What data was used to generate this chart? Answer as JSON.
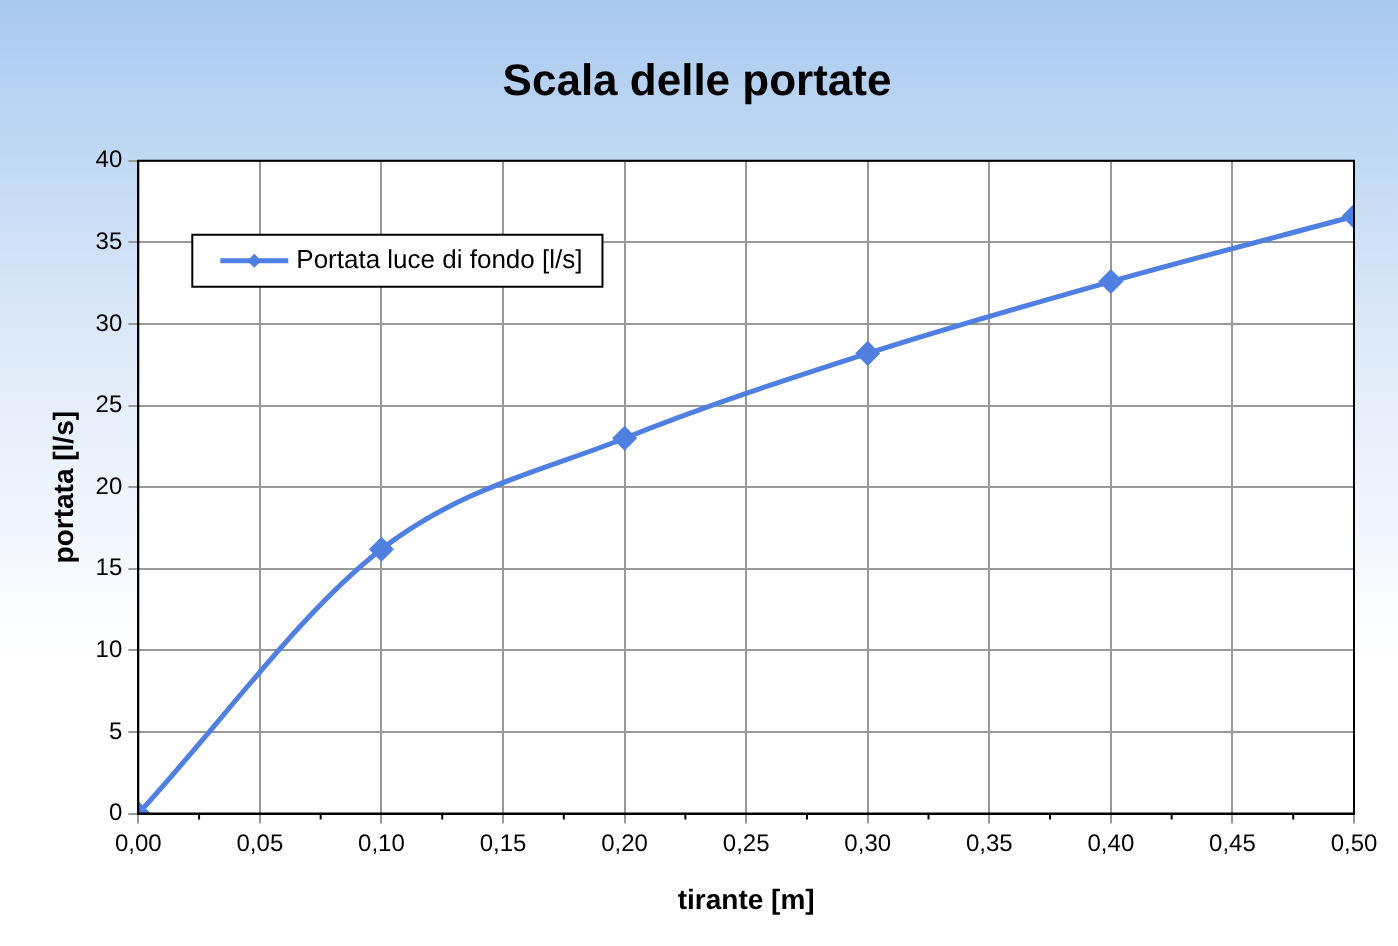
{
  "chart_data": {
    "type": "line",
    "title": "Scala delle portate",
    "xlabel": "tirante [m]",
    "ylabel": "portata [l/s]",
    "x": [
      0,
      0.1,
      0.2,
      0.3,
      0.4,
      0.5
    ],
    "series": [
      {
        "name": "Portata luce di fondo [l/s]",
        "color": "#4f7fe0",
        "values": [
          0,
          16.2,
          23,
          28.2,
          32.6,
          36.6
        ]
      }
    ],
    "xlim": [
      0,
      0.5
    ],
    "ylim": [
      0,
      40
    ],
    "xticks": [
      {
        "value": 0,
        "label": "0,00"
      },
      {
        "value": 0.05,
        "label": "0,05"
      },
      {
        "value": 0.1,
        "label": "0,10"
      },
      {
        "value": 0.15,
        "label": "0,15"
      },
      {
        "value": 0.2,
        "label": "0,20"
      },
      {
        "value": 0.25,
        "label": "0,25"
      },
      {
        "value": 0.3,
        "label": "0,30"
      },
      {
        "value": 0.35,
        "label": "0,35"
      },
      {
        "value": 0.4,
        "label": "0,40"
      },
      {
        "value": 0.45,
        "label": "0,45"
      },
      {
        "value": 0.5,
        "label": "0,50"
      }
    ],
    "yticks": [
      0,
      5,
      10,
      15,
      20,
      25,
      30,
      35,
      40
    ],
    "grid": true,
    "legend": "top left",
    "marker": "diamond",
    "line_style": "solid"
  }
}
